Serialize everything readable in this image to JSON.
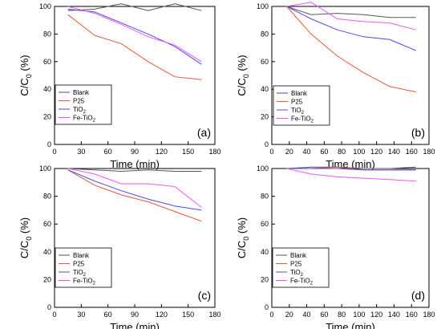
{
  "colors": {
    "Blank": "#555555",
    "P25": "#e8553a",
    "TiO2": "#4a4ae0",
    "Fe-TiO2": "#f055f0"
  },
  "chart_data": [
    {
      "type": "line",
      "panel_label": "(a)",
      "xlabel": "Time (min)",
      "ylabel_main": "C/C",
      "ylabel_sub": "0",
      "ylabel_tail": " (%)",
      "xlim": [
        0,
        180
      ],
      "ylim": [
        0,
        100
      ],
      "xticks": [
        "0",
        "30",
        "60",
        "90",
        "120",
        "150",
        "180"
      ],
      "yticks": [
        "0",
        "20",
        "40",
        "60",
        "80",
        "100"
      ],
      "legend_position": "bottom-left",
      "series": [
        {
          "name": "Blank",
          "x": [
            15,
            45,
            75,
            105,
            135,
            165
          ],
          "y": [
            97,
            98,
            102,
            97,
            102,
            97
          ]
        },
        {
          "name": "P25",
          "x": [
            15,
            45,
            75,
            105,
            135,
            165
          ],
          "y": [
            94,
            79,
            73,
            60,
            49,
            47
          ]
        },
        {
          "name": "TiO2",
          "x": [
            15,
            45,
            75,
            105,
            135,
            165
          ],
          "y": [
            98,
            96,
            88,
            80,
            71,
            58
          ]
        },
        {
          "name": "Fe-TiO2",
          "x": [
            15,
            45,
            75,
            105,
            135,
            165
          ],
          "y": [
            100,
            95,
            87,
            78,
            72,
            60
          ]
        }
      ]
    },
    {
      "type": "line",
      "panel_label": "(b)",
      "xlabel": "Time (min)",
      "ylabel_main": "C/C",
      "ylabel_sub": "0",
      "ylabel_tail": " (%)",
      "xlim": [
        0,
        180
      ],
      "ylim": [
        0,
        100
      ],
      "xticks": [
        "0",
        "20",
        "40",
        "60",
        "80",
        "100",
        "120",
        "140",
        "160",
        "180"
      ],
      "yticks": [
        "0",
        "20",
        "40",
        "60",
        "80",
        "100"
      ],
      "legend_position": "top-right",
      "series": [
        {
          "name": "Blank",
          "x": [
            17,
            45,
            75,
            105,
            135,
            165
          ],
          "y": [
            100,
            94,
            95,
            94,
            92,
            92
          ]
        },
        {
          "name": "P25",
          "x": [
            17,
            45,
            75,
            105,
            135,
            165
          ],
          "y": [
            100,
            80,
            64,
            52,
            42,
            38
          ]
        },
        {
          "name": "TiO2",
          "x": [
            17,
            45,
            75,
            105,
            135,
            165
          ],
          "y": [
            100,
            91,
            83,
            78,
            76,
            68
          ]
        },
        {
          "name": "Fe-TiO2",
          "x": [
            17,
            45,
            75,
            105,
            135,
            165
          ],
          "y": [
            100,
            103,
            91,
            89,
            88,
            83
          ]
        }
      ]
    },
    {
      "type": "line",
      "panel_label": "(c)",
      "xlabel": "Time (min)",
      "ylabel_main": "C/C",
      "ylabel_sub": "0",
      "ylabel_tail": " (%)",
      "xlim": [
        0,
        180
      ],
      "ylim": [
        0,
        100
      ],
      "xticks": [
        "0",
        "30",
        "60",
        "90",
        "120",
        "150",
        "180"
      ],
      "yticks": [
        "0",
        "20",
        "40",
        "60",
        "80",
        "100"
      ],
      "legend_position": "bottom-left",
      "series": [
        {
          "name": "Blank",
          "x": [
            15,
            45,
            75,
            105,
            135,
            165
          ],
          "y": [
            100,
            99,
            98,
            99,
            98,
            98
          ]
        },
        {
          "name": "P25",
          "x": [
            15,
            45,
            75,
            105,
            135,
            165
          ],
          "y": [
            99,
            88,
            81,
            76,
            69,
            62
          ]
        },
        {
          "name": "TiO2",
          "x": [
            15,
            45,
            75,
            105,
            135,
            165
          ],
          "y": [
            99,
            91,
            84,
            78,
            73,
            70
          ]
        },
        {
          "name": "Fe-TiO2",
          "x": [
            15,
            45,
            75,
            105,
            135,
            165
          ],
          "y": [
            100,
            96,
            89,
            89,
            87,
            72
          ]
        }
      ]
    },
    {
      "type": "line",
      "panel_label": "(d)",
      "xlabel": "Time (min)",
      "ylabel_main": "C/C",
      "ylabel_sub": "0",
      "ylabel_tail": " (%)",
      "xlim": [
        0,
        180
      ],
      "ylim": [
        0,
        100
      ],
      "xticks": [
        "0",
        "20",
        "40",
        "60",
        "80",
        "100",
        "120",
        "140",
        "160",
        "180"
      ],
      "yticks": [
        "0",
        "20",
        "40",
        "60",
        "80",
        "100"
      ],
      "legend_position": "bottom-left",
      "series": [
        {
          "name": "Blank",
          "x": [
            17,
            45,
            75,
            105,
            135,
            165
          ],
          "y": [
            100,
            101,
            101,
            100,
            100,
            101
          ]
        },
        {
          "name": "P25",
          "x": [
            17,
            45,
            75,
            105,
            135,
            165
          ],
          "y": [
            100,
            100,
            101,
            99,
            99,
            99
          ]
        },
        {
          "name": "TiO2",
          "x": [
            17,
            45,
            75,
            105,
            135,
            165
          ],
          "y": [
            100,
            100,
            100,
            99,
            99,
            99
          ]
        },
        {
          "name": "Fe-TiO2",
          "x": [
            17,
            45,
            75,
            105,
            135,
            165
          ],
          "y": [
            100,
            96,
            94,
            93,
            92,
            91
          ]
        }
      ]
    }
  ]
}
